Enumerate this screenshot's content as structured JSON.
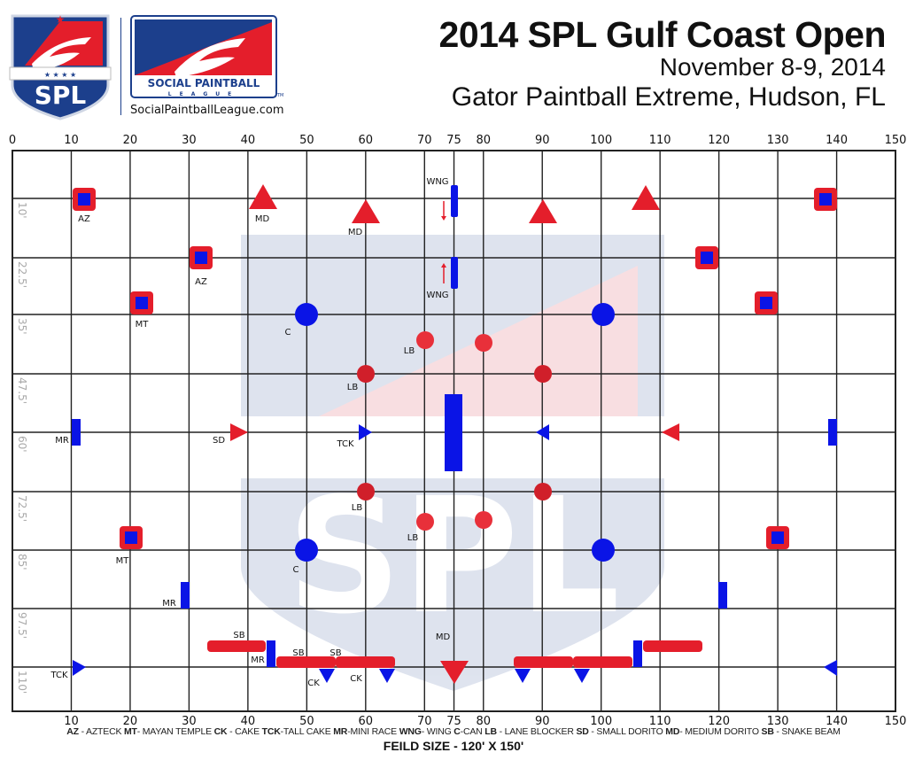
{
  "header": {
    "title": "2014 SPL Gulf Coast Open",
    "dates": "November 8-9, 2014",
    "venue": "Gator Paintball Extreme, Hudson, FL"
  },
  "logo": {
    "shield_text": "SPL",
    "brand_line1": "SOCIAL PAINTBALL",
    "brand_line2": "LEAGUE",
    "url": "SocialPaintballLeague.com"
  },
  "field": {
    "x_ticks_top": [
      "0",
      "10",
      "20",
      "30",
      "40",
      "50",
      "60",
      "70",
      "75",
      "80",
      "90",
      "100",
      "110",
      "120",
      "130",
      "140",
      "150"
    ],
    "x_ticks_bottom": [
      "10",
      "20",
      "30",
      "40",
      "50",
      "60",
      "70",
      "75",
      "80",
      "90",
      "100",
      "110",
      "120",
      "130",
      "140",
      "150"
    ],
    "y_ticks": [
      "10'",
      "22.5'",
      "35'",
      "47.5'",
      "60'",
      "72.5'",
      "85'",
      "97.5'",
      "110'"
    ],
    "colors": {
      "red": "#e41e2b",
      "blue": "#0a14e6",
      "grid": "#222222"
    },
    "labels": {
      "az": "AZ",
      "mt": "MT",
      "md": "MD",
      "wng": "WNG",
      "c": "C",
      "lb": "LB",
      "mr": "MR",
      "sd": "SD",
      "tck": "TCK",
      "sb": "SB",
      "ck": "CK"
    }
  },
  "legend": [
    {
      "abbr": "AZ",
      "name": " - AZTECK"
    },
    {
      "abbr": "MT",
      "name": "- MAYAN TEMPLE"
    },
    {
      "abbr": "CK",
      "name": " - CAKE"
    },
    {
      "abbr": "TCK",
      "name": "-TALL CAKE"
    },
    {
      "abbr": "MR",
      "name": "-MINI RACE"
    },
    {
      "abbr": "WNG",
      "name": "- WING"
    },
    {
      "abbr": "C",
      "name": "-CAN"
    },
    {
      "abbr": "LB",
      "name": " - LANE BLOCKER"
    },
    {
      "abbr": "SD",
      "name": " - SMALL DORITO"
    },
    {
      "abbr": "MD",
      "name": "- MEDIUM DORITO"
    },
    {
      "abbr": "SB",
      "name": " - SNAKE BEAM"
    }
  ],
  "field_size": "FEILD SIZE - 120' X 150'"
}
